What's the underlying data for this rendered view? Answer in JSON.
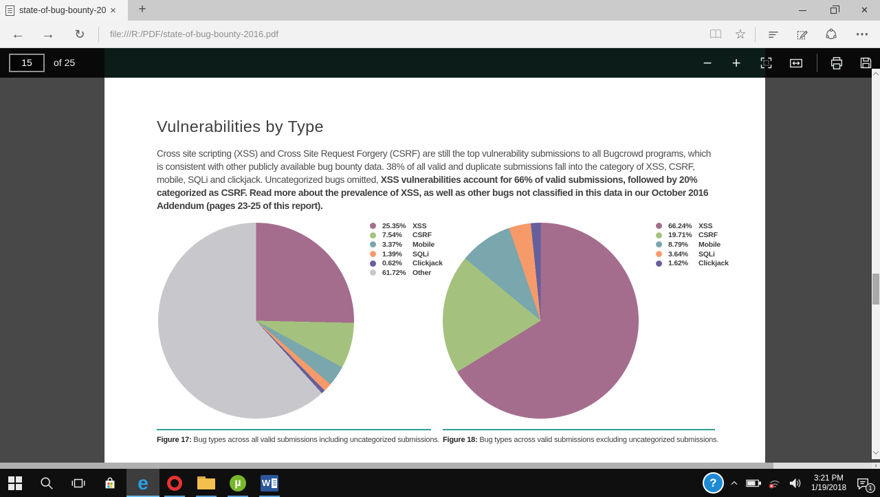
{
  "browser": {
    "tab_title": "state-of-bug-bounty-20",
    "url": "file:///R:/PDF/state-of-bug-bounty-2016.pdf"
  },
  "pdf_viewer": {
    "current_page": "15",
    "page_count_label": "of 25"
  },
  "icons": {
    "close_tab": "×",
    "new_tab": "+",
    "window_close": "✕",
    "back": "←",
    "forward": "→",
    "refresh": "↻",
    "favorites_star": "☆",
    "more": "⋯",
    "zoom_out": "−",
    "zoom_in": "+",
    "hscroll_arrow": "›",
    "help": "?",
    "utorrent": "µ",
    "word": "W"
  },
  "page": {
    "title": "Vulnerabilities by Type",
    "paragraph_regular": "Cross site scripting (XSS) and Cross Site Request Forgery (CSRF) are still the top vulnerability submissions to all Bugcrowd programs, which is consistent with other publicly available bug bounty data. 38% of all valid and duplicate submissions fall into the category of XSS, CSRF, mobile, SQLi and clickjack. Uncategorized bugs omitted, ",
    "paragraph_bold": "XSS vulnerabilities account for 66% of valid submissions, followed by 20% categorized as CSRF. Read more about the prevalence of XSS, as well as other bugs not classified in this data in our October 2016 Addendum (pages 23-25 of this report).",
    "figure17_label": "Figure 17:",
    "figure17_caption": " Bug types across all valid submissions including uncategorized submissions.",
    "figure18_label": "Figure 18:",
    "figure18_caption": " Bug types across valid submissions excluding uncategorized submissions."
  },
  "chart_data": [
    {
      "type": "pie",
      "figure": "Figure 17",
      "title": "Bug types across all valid submissions including uncategorized submissions",
      "labels": [
        "XSS",
        "CSRF",
        "Mobile",
        "SQLi",
        "Clickjack",
        "Other"
      ],
      "values": [
        25.35,
        7.54,
        3.37,
        1.39,
        0.62,
        61.72
      ],
      "display_percents": [
        "25.35%",
        "7.54%",
        "3.37%",
        "1.39%",
        "0.62%",
        "61.72%"
      ],
      "colors": [
        "#a56d8d",
        "#a4c27e",
        "#7aa6ad",
        "#f79a6a",
        "#665f9d",
        "#c8c8cc"
      ],
      "start_angle_deg": 0,
      "direction": "clockwise",
      "legend_position": "right"
    },
    {
      "type": "pie",
      "figure": "Figure 18",
      "title": "Bug types across valid submissions excluding uncategorized submissions",
      "labels": [
        "XSS",
        "CSRF",
        "Mobile",
        "SQLi",
        "Clickjack"
      ],
      "values": [
        66.24,
        19.71,
        8.79,
        3.64,
        1.62
      ],
      "display_percents": [
        "66.24%",
        "19.71%",
        "8.79%",
        "3.64%",
        "1.62%"
      ],
      "colors": [
        "#a56d8d",
        "#a4c27e",
        "#7aa6ad",
        "#f79a6a",
        "#665f9d"
      ],
      "start_angle_deg": 0,
      "direction": "clockwise",
      "legend_position": "right"
    }
  ],
  "taskbar": {
    "time": "3:21 PM",
    "date": "1/19/2018",
    "notification_badge": "1"
  },
  "colors": {
    "accent_teal": "#2f9e96",
    "taskbar_underline": "#6cc0f0",
    "pdf_toolbar_tint": "#0c1d19"
  }
}
